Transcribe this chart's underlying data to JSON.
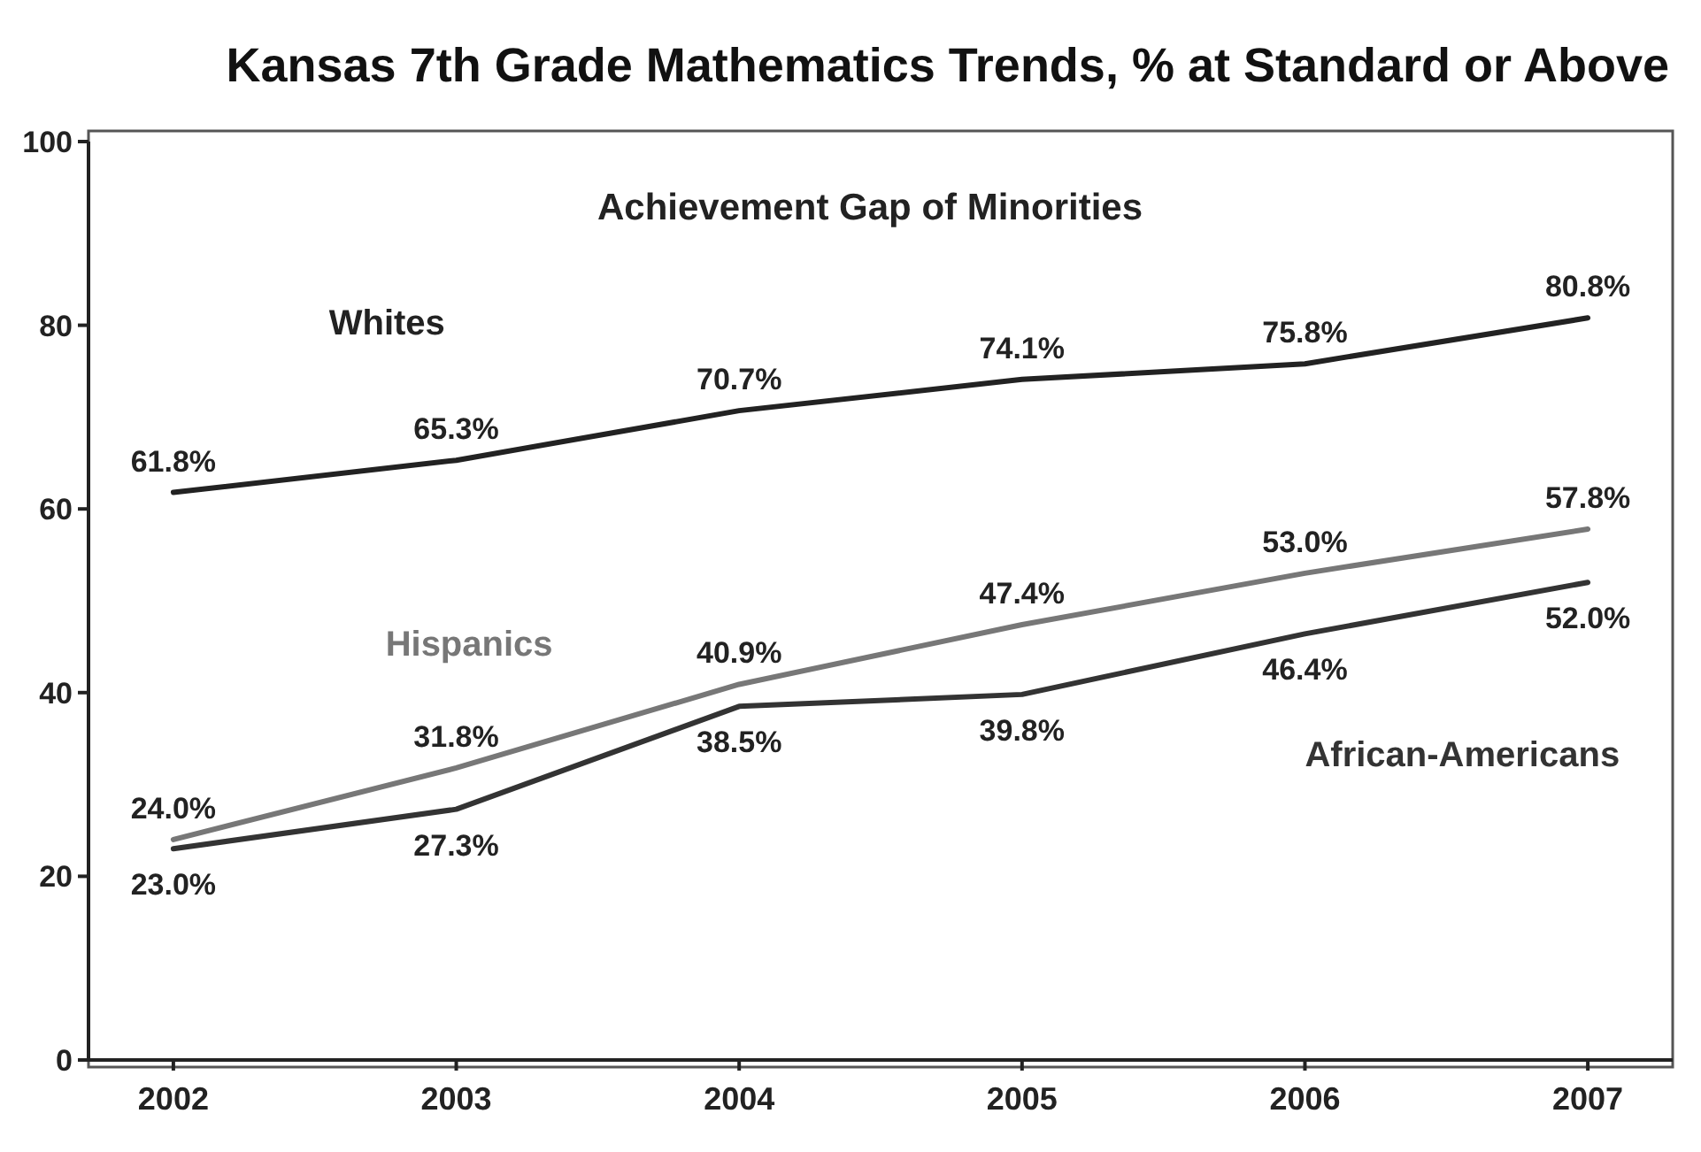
{
  "chart_data": {
    "type": "line",
    "title": "Kansas 7th Grade Mathematics Trends, % at Standard or Above",
    "subtitle": "Achievement Gap of Minorities",
    "x": [
      2002,
      2003,
      2004,
      2005,
      2006,
      2007
    ],
    "xlim": [
      2001.7,
      2007.3
    ],
    "xticks": [
      2002,
      2003,
      2004,
      2005,
      2006,
      2007
    ],
    "ylim": [
      0,
      100
    ],
    "yticks": [
      0,
      20,
      40,
      60,
      80,
      100
    ],
    "series": [
      {
        "name": "Whites",
        "color": "#222222",
        "values": [
          61.8,
          65.3,
          70.7,
          74.1,
          75.8,
          80.8
        ],
        "value_labels": [
          "61.8%",
          "65.3%",
          "70.7%",
          "74.1%",
          "75.8%",
          "80.8%"
        ]
      },
      {
        "name": "Hispanics",
        "color": "#777777",
        "values": [
          24.0,
          31.8,
          40.9,
          47.4,
          53.0,
          57.8
        ],
        "value_labels": [
          "24.0%",
          "31.8%",
          "40.9%",
          "47.4%",
          "53.0%",
          "57.8%"
        ]
      },
      {
        "name": "African-Americans",
        "color": "#333333",
        "values": [
          23.0,
          27.3,
          38.5,
          39.8,
          46.4,
          52.0
        ],
        "value_labels": [
          "23.0%",
          "27.3%",
          "38.5%",
          "39.8%",
          "46.4%",
          "52.0%"
        ]
      }
    ],
    "legend": false,
    "grid": false,
    "marker": "none",
    "line_style": "solid"
  }
}
